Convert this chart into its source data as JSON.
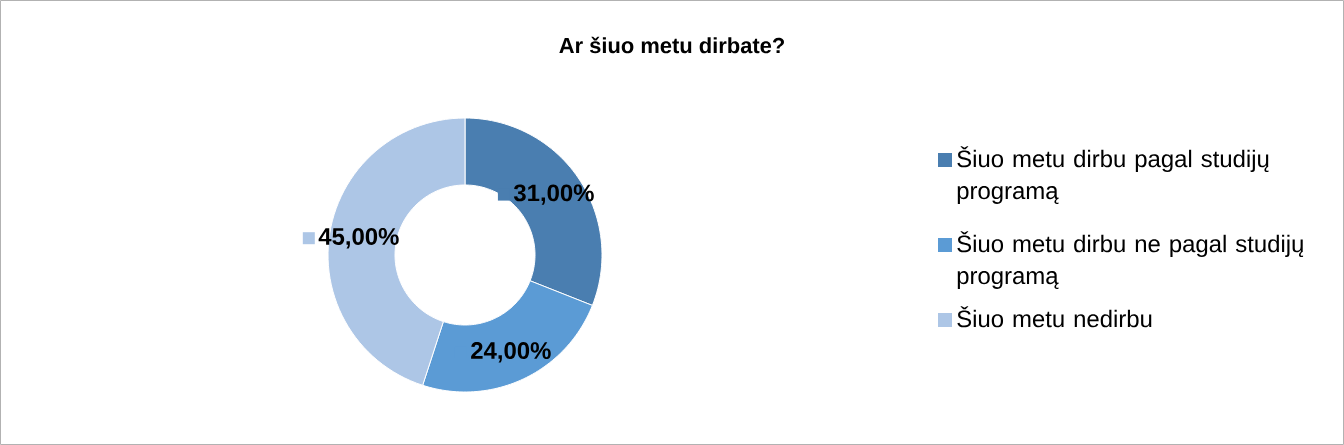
{
  "chart_data": {
    "type": "donut",
    "title": "Ar šiuo metu dirbate?",
    "categories": [
      "Šiuo metu dirbu pagal studijų programą",
      "Šiuo metu dirbu ne pagal studijų programą",
      "Šiuo metu nedirbu"
    ],
    "values": [
      31,
      24,
      45
    ],
    "colors": [
      "#4a7eb0",
      "#5b9bd5",
      "#adc6e6"
    ],
    "value_labels": [
      "31,00%",
      "24,00%",
      "45,00%"
    ],
    "legend": "right"
  }
}
